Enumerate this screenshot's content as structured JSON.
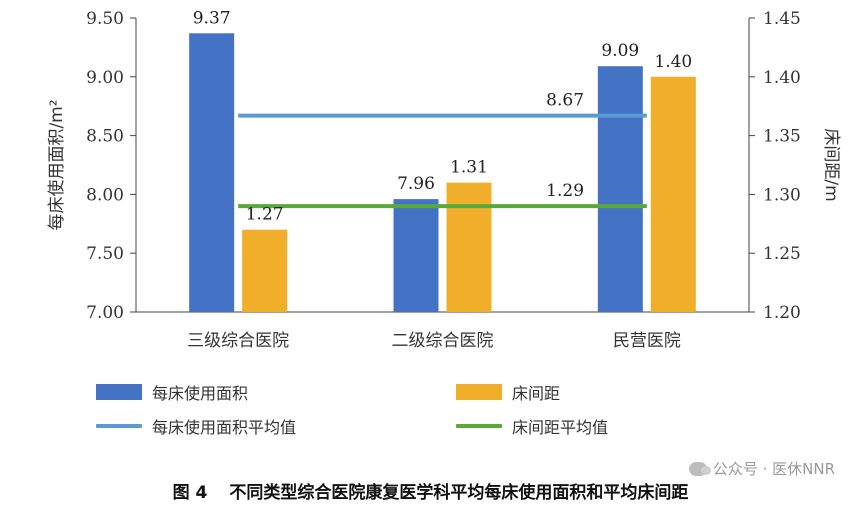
{
  "chart_data": {
    "type": "bar",
    "categories": [
      "三级综合医院",
      "二级综合医院",
      "民营医院"
    ],
    "series": [
      {
        "name": "每床使用面积",
        "axis": "left",
        "color": "#4472C4",
        "values": [
          9.37,
          7.96,
          9.09
        ]
      },
      {
        "name": "床间距",
        "axis": "right",
        "color": "#F0AE2B",
        "values": [
          1.27,
          1.31,
          1.4
        ]
      }
    ],
    "reference_lines": [
      {
        "name": "每床使用面积平均值",
        "axis": "left",
        "color": "#5B9BD5",
        "value": 8.67,
        "label": "8.67"
      },
      {
        "name": "床间距平均值",
        "axis": "right",
        "color": "#58A83A",
        "value": 1.29,
        "label": "1.29"
      }
    ],
    "left_axis": {
      "label": "每床使用面积/m²",
      "min": 7.0,
      "max": 9.5,
      "ticks": [
        "7.00",
        "7.50",
        "8.00",
        "8.50",
        "9.00",
        "9.50"
      ]
    },
    "right_axis": {
      "label": "床间距/m",
      "min": 1.2,
      "max": 1.45,
      "ticks": [
        "1.20",
        "1.25",
        "1.30",
        "1.35",
        "1.40",
        "1.45"
      ]
    },
    "data_labels": {
      "bars_left": [
        "9.37",
        "7.96",
        "9.09"
      ],
      "bars_right": [
        "1.27",
        "1.31",
        "1.40"
      ]
    },
    "legend_position": "bottom",
    "grid": false
  },
  "legend": {
    "items": [
      {
        "label": "每床使用面积",
        "kind": "bar",
        "color": "#4472C4"
      },
      {
        "label": "床间距",
        "kind": "bar",
        "color": "#F0AE2B"
      },
      {
        "label": "每床使用面积平均值",
        "kind": "line",
        "color": "#5B9BD5"
      },
      {
        "label": "床间距平均值",
        "kind": "line",
        "color": "#58A83A"
      }
    ]
  },
  "caption": {
    "number": "图 4",
    "text": "不同类型综合医院康复医学科平均每床使用面积和平均床间距"
  },
  "watermark": {
    "text": "公众号 · 医休NNR"
  }
}
